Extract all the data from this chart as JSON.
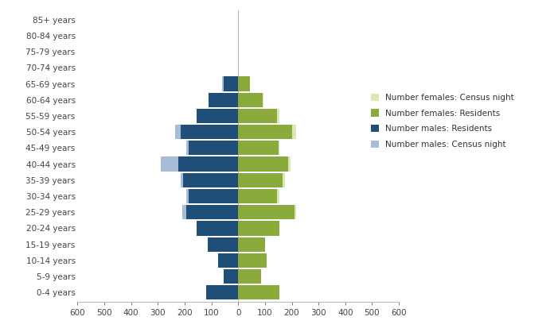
{
  "age_groups": [
    "0-4 years",
    "5-9 years",
    "10-14 years",
    "15-19 years",
    "20-24 years",
    "25-29 years",
    "30-34 years",
    "35-39 years",
    "40-44 years",
    "45-49 years",
    "50-54 years",
    "55-59 years",
    "60-64 years",
    "65-69 years",
    "70-74 years",
    "75-79 years",
    "80-84 years",
    "85+ years"
  ],
  "males_census_night": [
    0,
    0,
    0,
    0,
    0,
    210,
    195,
    215,
    290,
    195,
    235,
    155,
    110,
    60,
    0,
    0,
    0,
    0
  ],
  "males_residents": [
    120,
    55,
    75,
    115,
    155,
    195,
    185,
    205,
    225,
    185,
    215,
    155,
    110,
    55,
    0,
    0,
    0,
    0
  ],
  "females_census_night": [
    0,
    0,
    0,
    0,
    0,
    215,
    155,
    175,
    195,
    155,
    215,
    155,
    95,
    45,
    0,
    0,
    0,
    0
  ],
  "females_residents": [
    155,
    85,
    105,
    100,
    155,
    210,
    145,
    165,
    185,
    150,
    200,
    145,
    90,
    45,
    0,
    0,
    0,
    0
  ],
  "color_males_census": "#a8bcd8",
  "color_males_residents": "#1f4e79",
  "color_females_census": "#d9e8b4",
  "color_females_residents": "#8aab3c",
  "legend_labels": [
    "Number females: Census night",
    "Number females: Residents",
    "Number males: Residents",
    "Number males: Census night"
  ],
  "legend_colors": [
    "#d9e8b4",
    "#8aab3c",
    "#1f4e79",
    "#a8bcd8"
  ],
  "xlim": 600,
  "background_color": "#ffffff",
  "fig_width": 6.96,
  "fig_height": 4.18
}
